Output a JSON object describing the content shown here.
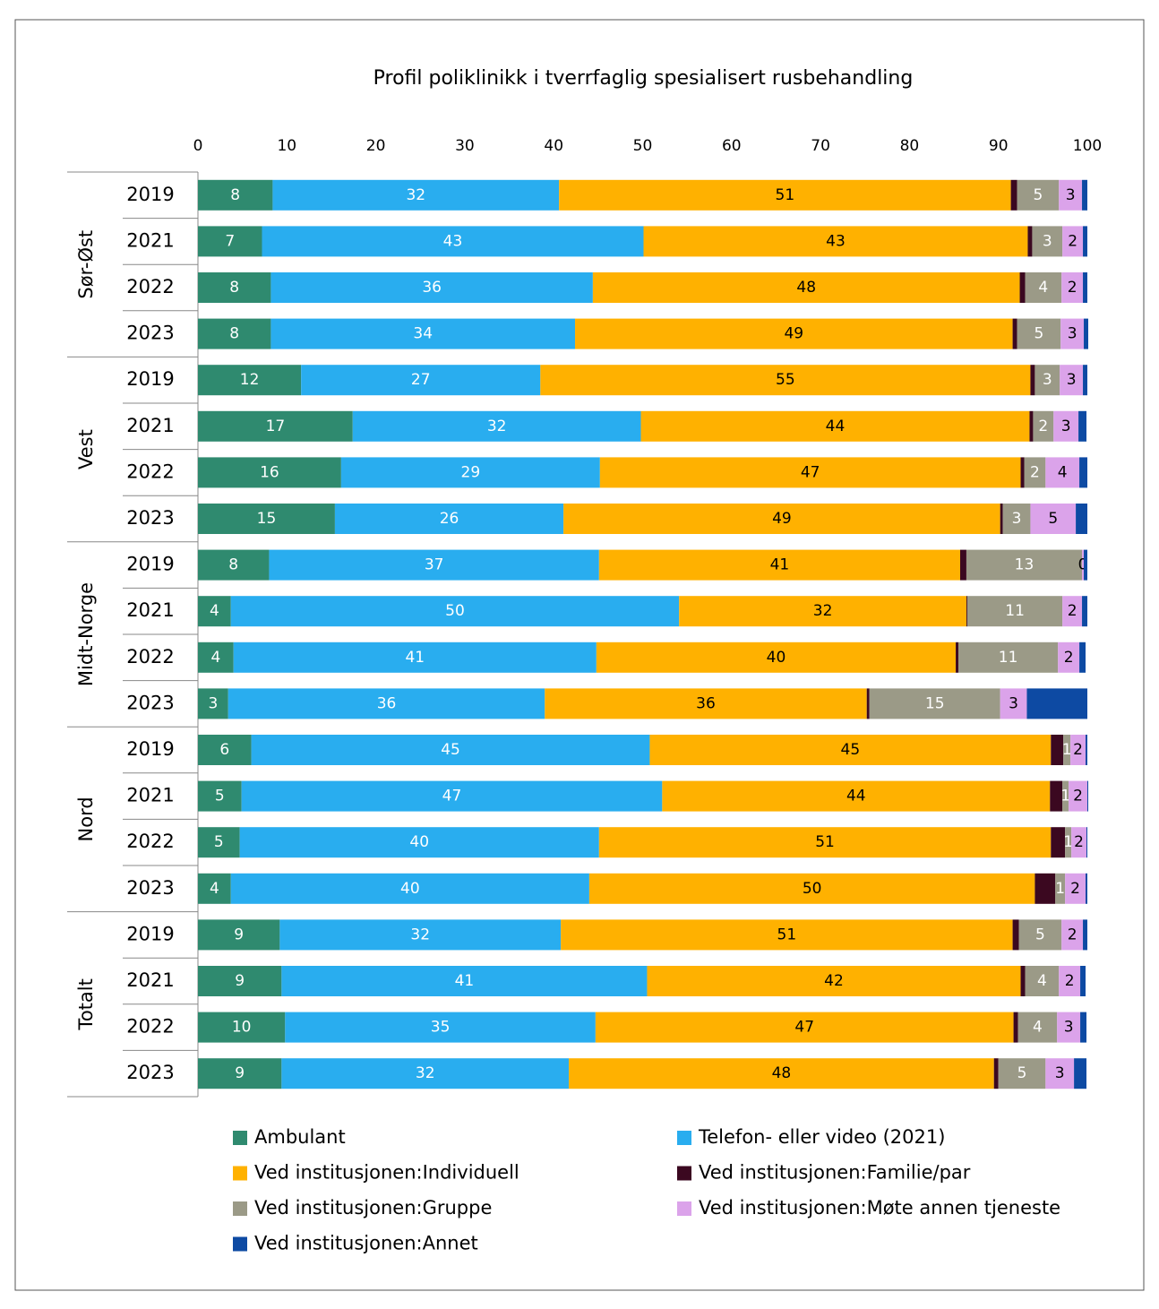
{
  "chart_data": {
    "type": "stacked-bar-horizontal",
    "title": "Profil poliklinikk i tverrfaglig spesialisert rusbehandling",
    "groups": [
      {
        "label": "Sør-Øst",
        "categories": [
          "2019",
          "2021",
          "2022",
          "2023"
        ]
      },
      {
        "label": "Vest",
        "categories": [
          "2019",
          "2021",
          "2022",
          "2023"
        ]
      },
      {
        "label": "Midt-Norge",
        "categories": [
          "2019",
          "2021",
          "2022",
          "2023"
        ]
      },
      {
        "label": "Nord",
        "categories": [
          "2019",
          "2021",
          "2022",
          "2023"
        ]
      },
      {
        "label": "Totalt",
        "categories": [
          "2019",
          "2021",
          "2022",
          "2023"
        ]
      }
    ],
    "xlim": [
      0,
      100
    ],
    "xticks": [
      0,
      10,
      20,
      30,
      40,
      50,
      60,
      70,
      80,
      90,
      100
    ],
    "series": [
      {
        "name": "Ambulant",
        "color": "#2f8a6f",
        "values": [
          8.4,
          7.2,
          8.2,
          8.2,
          11.6,
          17.4,
          16.1,
          15.4,
          8.0,
          3.7,
          4.0,
          3.4,
          6.0,
          4.9,
          4.7,
          3.7,
          9.2,
          9.4,
          9.8,
          9.4
        ],
        "value_labels": [
          "8",
          "7",
          "8",
          "8",
          "12",
          "17",
          "16",
          "15",
          "8",
          "4",
          "4",
          "3",
          "6",
          "5",
          "5",
          "4",
          "9",
          "9",
          "10",
          "9"
        ]
      },
      {
        "name": "Telefon- eller video (2021)",
        "color": "#29adef",
        "values": [
          32.2,
          42.9,
          36.2,
          34.2,
          26.9,
          32.4,
          29.1,
          25.7,
          37.1,
          50.4,
          40.8,
          35.6,
          44.8,
          47.3,
          40.4,
          40.3,
          31.6,
          41.1,
          34.9,
          32.3
        ],
        "value_labels": [
          "32",
          "43",
          "36",
          "34",
          "27",
          "32",
          "29",
          "26",
          "37",
          "50",
          "41",
          "36",
          "45",
          "47",
          "40",
          "40",
          "32",
          "41",
          "35",
          "32"
        ]
      },
      {
        "name": "Ved institusjonen:Individuell",
        "color": "#ffb100",
        "values": [
          50.8,
          43.2,
          48.0,
          49.2,
          55.1,
          43.7,
          47.3,
          49.1,
          40.6,
          32.3,
          40.4,
          36.2,
          45.1,
          43.6,
          50.8,
          50.1,
          50.8,
          42.0,
          47.0,
          47.8
        ],
        "value_labels": [
          "51",
          "43",
          "48",
          "49",
          "55",
          "44",
          "47",
          "49",
          "41",
          "32",
          "40",
          "36",
          "45",
          "44",
          "51",
          "50",
          "51",
          "42",
          "47",
          "48"
        ]
      },
      {
        "name": "Ved institusjonen:Familie/par",
        "color": "#3b0820",
        "values": [
          0.7,
          0.5,
          0.6,
          0.5,
          0.5,
          0.4,
          0.4,
          0.3,
          0.7,
          0.1,
          0.3,
          0.3,
          1.4,
          1.4,
          1.6,
          2.3,
          0.7,
          0.5,
          0.5,
          0.5
        ]
      },
      {
        "name": "Ved institusjonen:Gruppe",
        "color": "#9b9a87",
        "values": [
          4.7,
          3.4,
          4.1,
          4.9,
          2.8,
          2.3,
          2.4,
          3.1,
          13.0,
          10.7,
          11.2,
          14.7,
          0.8,
          0.7,
          0.7,
          1.1,
          4.8,
          3.8,
          4.4,
          5.3
        ],
        "value_labels": [
          "5",
          "3",
          "4",
          "5",
          "3",
          "2",
          "2",
          "3",
          "13",
          "11",
          "11",
          "15",
          "1",
          "1",
          "1",
          "1",
          "5",
          "4",
          "4",
          "5"
        ]
      },
      {
        "name": "Ved institusjonen:Møte annen tjeneste",
        "color": "#dba3ea",
        "values": [
          2.6,
          2.3,
          2.4,
          2.6,
          2.6,
          2.8,
          3.8,
          5.1,
          0.2,
          2.2,
          2.4,
          3.0,
          1.7,
          2.1,
          1.7,
          2.3,
          2.4,
          2.4,
          2.6,
          3.2
        ],
        "value_labels": [
          "3",
          "2",
          "2",
          "3",
          "3",
          "3",
          "4",
          "5",
          "0",
          "2",
          "2",
          "3",
          "2",
          "2",
          "2",
          "2",
          "2",
          "2",
          "3",
          "3"
        ]
      },
      {
        "name": "Ved institusjonen:Annet",
        "color": "#0d4aa3",
        "values": [
          0.6,
          0.5,
          0.5,
          0.5,
          0.5,
          0.9,
          0.9,
          1.3,
          0.4,
          0.6,
          0.7,
          6.8,
          0.2,
          0.1,
          0.1,
          0.2,
          0.5,
          0.6,
          0.7,
          1.4
        ]
      }
    ]
  }
}
